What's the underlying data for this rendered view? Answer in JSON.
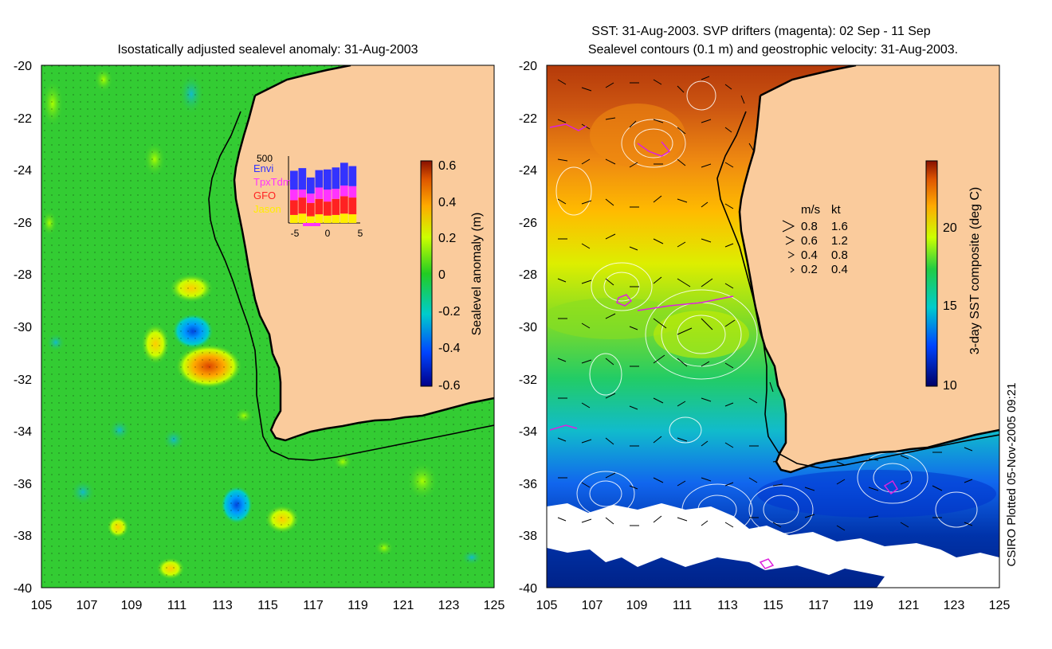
{
  "left": {
    "title": "Isostatically adjusted sealevel anomaly: 31-Aug-2003",
    "y_ticks": [
      "-20",
      "-22",
      "-24",
      "-26",
      "-28",
      "-30",
      "-32",
      "-34",
      "-36",
      "-38",
      "-40"
    ],
    "x_ticks": [
      "105",
      "107",
      "109",
      "111",
      "113",
      "115",
      "117",
      "119",
      "121",
      "123",
      "125"
    ],
    "colorbar": {
      "label": "Sealevel anomaly (m)",
      "ticks": [
        "0.6",
        "0.4",
        "0.2",
        "0",
        "-0.2",
        "-0.4",
        "-0.6"
      ]
    },
    "inset": {
      "ymax_label": "500",
      "legend": [
        "Envi",
        "TpxTdm",
        "GFO",
        "Jason"
      ],
      "legend_colors": [
        "#3333ff",
        "#ff33ff",
        "#ff2222",
        "#ffee00"
      ],
      "x_ticks": [
        "-5",
        "0",
        "5"
      ],
      "bars": [
        {
          "jason": 60,
          "gfo": 110,
          "tpx": 80,
          "envi": 140
        },
        {
          "jason": 70,
          "gfo": 120,
          "tpx": 60,
          "envi": 160
        },
        {
          "jason": 50,
          "gfo": 100,
          "tpx": 70,
          "envi": 120
        },
        {
          "jason": 65,
          "gfo": 115,
          "tpx": 85,
          "envi": 130
        },
        {
          "jason": 55,
          "gfo": 105,
          "tpx": 90,
          "envi": 150
        },
        {
          "jason": 60,
          "gfo": 120,
          "tpx": 75,
          "envi": 160
        },
        {
          "jason": 70,
          "gfo": 130,
          "tpx": 80,
          "envi": 170
        },
        {
          "jason": 65,
          "gfo": 125,
          "tpx": 85,
          "envi": 150
        }
      ]
    }
  },
  "right": {
    "title_line1": "SST: 31-Aug-2003. SVP drifters (magenta): 02 Sep - 11 Sep",
    "title_line2": "Sealevel contours (0.1 m) and geostrophic velocity: 31-Aug-2003.",
    "y_ticks": [
      "-20",
      "-22",
      "-24",
      "-26",
      "-28",
      "-30",
      "-32",
      "-34",
      "-36",
      "-38",
      "-40"
    ],
    "x_ticks": [
      "105",
      "107",
      "109",
      "111",
      "113",
      "115",
      "117",
      "119",
      "121",
      "123",
      "125"
    ],
    "colorbar": {
      "label": "3-day SST composite (deg C)",
      "ticks": [
        "20",
        "15",
        "10"
      ]
    },
    "speed_legend": {
      "header_ms": "m/s",
      "header_kt": "kt",
      "rows": [
        {
          "ms": "0.8",
          "kt": "1.6"
        },
        {
          "ms": "0.6",
          "kt": "1.2"
        },
        {
          "ms": "0.4",
          "kt": "0.8"
        },
        {
          "ms": "0.2",
          "kt": "0.4"
        }
      ]
    }
  },
  "credit": "CSIRO Plotted 05-Nov-2005 09:21",
  "colors": {
    "land": "#facb9c",
    "coast": "#000000",
    "ssl_green": "#33cc33",
    "drifter": "#dd22dd"
  }
}
